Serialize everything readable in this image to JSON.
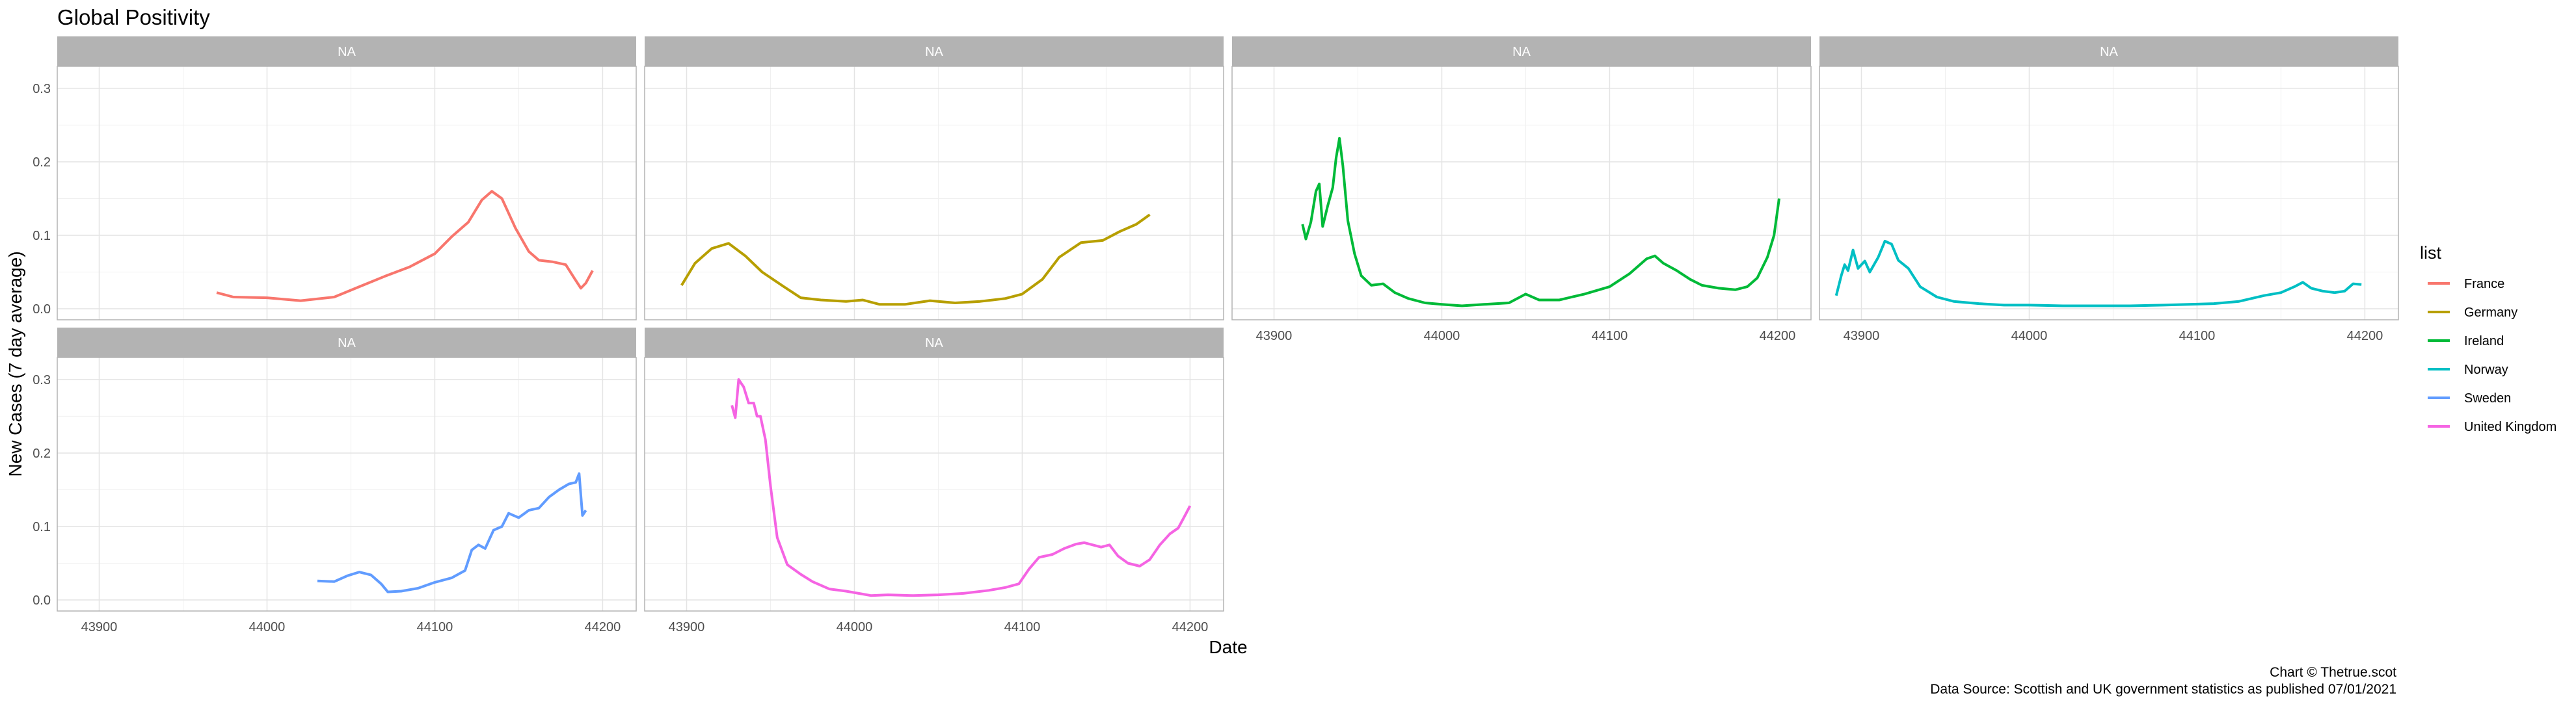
{
  "chart_data": {
    "type": "line",
    "title": "Global Positivity",
    "xlabel": "Date",
    "ylabel": "New Cases (7 day average)",
    "xlim": [
      43875,
      44220
    ],
    "ylim": [
      -0.015,
      0.33
    ],
    "x_ticks": [
      43900,
      44000,
      44100,
      44200
    ],
    "y_ticks": [
      0.0,
      0.1,
      0.2,
      0.3
    ],
    "y_tick_labels": [
      "0.0",
      "0.1",
      "0.2",
      "0.3"
    ],
    "facet_strip_label": "NA",
    "grid": true,
    "legend": {
      "title": "list",
      "position": "right"
    },
    "caption": [
      "Chart © Thetrue.scot",
      "Data Source: Scottish and UK government statistics as published 07/01/2021"
    ],
    "series": [
      {
        "name": "France",
        "color": "#F8766D",
        "points": [
          [
            43970,
            0.022
          ],
          [
            43980,
            0.016
          ],
          [
            44000,
            0.015
          ],
          [
            44020,
            0.011
          ],
          [
            44040,
            0.016
          ],
          [
            44055,
            0.03
          ],
          [
            44070,
            0.044
          ],
          [
            44085,
            0.057
          ],
          [
            44100,
            0.075
          ],
          [
            44110,
            0.098
          ],
          [
            44120,
            0.118
          ],
          [
            44128,
            0.148
          ],
          [
            44134,
            0.16
          ],
          [
            44140,
            0.15
          ],
          [
            44148,
            0.11
          ],
          [
            44156,
            0.078
          ],
          [
            44162,
            0.066
          ],
          [
            44170,
            0.064
          ],
          [
            44178,
            0.06
          ],
          [
            44183,
            0.042
          ],
          [
            44187,
            0.028
          ],
          [
            44190,
            0.035
          ],
          [
            44194,
            0.052
          ]
        ]
      },
      {
        "name": "Germany",
        "color": "#B79F00",
        "points": [
          [
            43897,
            0.032
          ],
          [
            43905,
            0.062
          ],
          [
            43915,
            0.082
          ],
          [
            43925,
            0.089
          ],
          [
            43935,
            0.072
          ],
          [
            43945,
            0.05
          ],
          [
            43958,
            0.03
          ],
          [
            43968,
            0.015
          ],
          [
            43980,
            0.012
          ],
          [
            43995,
            0.01
          ],
          [
            44005,
            0.012
          ],
          [
            44015,
            0.006
          ],
          [
            44030,
            0.006
          ],
          [
            44045,
            0.011
          ],
          [
            44060,
            0.008
          ],
          [
            44075,
            0.01
          ],
          [
            44090,
            0.014
          ],
          [
            44100,
            0.02
          ],
          [
            44112,
            0.04
          ],
          [
            44122,
            0.07
          ],
          [
            44135,
            0.09
          ],
          [
            44148,
            0.093
          ],
          [
            44158,
            0.105
          ],
          [
            44168,
            0.115
          ],
          [
            44176,
            0.128
          ]
        ]
      },
      {
        "name": "Ireland",
        "color": "#00BA38",
        "points": [
          [
            43917,
            0.115
          ],
          [
            43919,
            0.095
          ],
          [
            43922,
            0.118
          ],
          [
            43925,
            0.16
          ],
          [
            43927,
            0.17
          ],
          [
            43929,
            0.112
          ],
          [
            43932,
            0.14
          ],
          [
            43935,
            0.165
          ],
          [
            43937,
            0.205
          ],
          [
            43939,
            0.232
          ],
          [
            43941,
            0.195
          ],
          [
            43944,
            0.12
          ],
          [
            43948,
            0.075
          ],
          [
            43952,
            0.045
          ],
          [
            43958,
            0.032
          ],
          [
            43965,
            0.034
          ],
          [
            43972,
            0.022
          ],
          [
            43980,
            0.014
          ],
          [
            43990,
            0.008
          ],
          [
            44000,
            0.006
          ],
          [
            44012,
            0.004
          ],
          [
            44025,
            0.006
          ],
          [
            44040,
            0.008
          ],
          [
            44050,
            0.02
          ],
          [
            44058,
            0.012
          ],
          [
            44070,
            0.012
          ],
          [
            44085,
            0.02
          ],
          [
            44100,
            0.03
          ],
          [
            44112,
            0.048
          ],
          [
            44122,
            0.068
          ],
          [
            44127,
            0.072
          ],
          [
            44132,
            0.062
          ],
          [
            44140,
            0.052
          ],
          [
            44148,
            0.04
          ],
          [
            44155,
            0.032
          ],
          [
            44165,
            0.028
          ],
          [
            44175,
            0.026
          ],
          [
            44182,
            0.03
          ],
          [
            44188,
            0.042
          ],
          [
            44194,
            0.07
          ],
          [
            44198,
            0.1
          ],
          [
            44201,
            0.15
          ]
        ]
      },
      {
        "name": "Norway",
        "color": "#00BFC4",
        "points": [
          [
            43885,
            0.018
          ],
          [
            43888,
            0.045
          ],
          [
            43890,
            0.06
          ],
          [
            43892,
            0.052
          ],
          [
            43895,
            0.08
          ],
          [
            43898,
            0.055
          ],
          [
            43902,
            0.065
          ],
          [
            43905,
            0.05
          ],
          [
            43910,
            0.07
          ],
          [
            43914,
            0.092
          ],
          [
            43918,
            0.088
          ],
          [
            43922,
            0.066
          ],
          [
            43928,
            0.055
          ],
          [
            43935,
            0.03
          ],
          [
            43945,
            0.016
          ],
          [
            43955,
            0.01
          ],
          [
            43970,
            0.007
          ],
          [
            43985,
            0.005
          ],
          [
            44000,
            0.005
          ],
          [
            44020,
            0.004
          ],
          [
            44040,
            0.004
          ],
          [
            44060,
            0.004
          ],
          [
            44080,
            0.005
          ],
          [
            44095,
            0.006
          ],
          [
            44110,
            0.007
          ],
          [
            44125,
            0.01
          ],
          [
            44140,
            0.018
          ],
          [
            44150,
            0.022
          ],
          [
            44158,
            0.03
          ],
          [
            44163,
            0.036
          ],
          [
            44168,
            0.028
          ],
          [
            44175,
            0.024
          ],
          [
            44182,
            0.022
          ],
          [
            44188,
            0.024
          ],
          [
            44193,
            0.034
          ],
          [
            44198,
            0.033
          ]
        ]
      },
      {
        "name": "Sweden",
        "color": "#619CFF",
        "points": [
          [
            44030,
            0.026
          ],
          [
            44040,
            0.025
          ],
          [
            44048,
            0.033
          ],
          [
            44055,
            0.038
          ],
          [
            44062,
            0.034
          ],
          [
            44068,
            0.022
          ],
          [
            44072,
            0.011
          ],
          [
            44080,
            0.012
          ],
          [
            44090,
            0.016
          ],
          [
            44100,
            0.024
          ],
          [
            44110,
            0.03
          ],
          [
            44118,
            0.04
          ],
          [
            44122,
            0.068
          ],
          [
            44126,
            0.075
          ],
          [
            44130,
            0.07
          ],
          [
            44135,
            0.095
          ],
          [
            44140,
            0.1
          ],
          [
            44144,
            0.118
          ],
          [
            44150,
            0.112
          ],
          [
            44156,
            0.122
          ],
          [
            44162,
            0.125
          ],
          [
            44168,
            0.14
          ],
          [
            44174,
            0.15
          ],
          [
            44180,
            0.158
          ],
          [
            44184,
            0.16
          ],
          [
            44186,
            0.172
          ],
          [
            44188,
            0.115
          ],
          [
            44190,
            0.122
          ]
        ]
      },
      {
        "name": "United Kingdom",
        "color": "#F564E3",
        "points": [
          [
            43927,
            0.265
          ],
          [
            43929,
            0.248
          ],
          [
            43931,
            0.3
          ],
          [
            43934,
            0.29
          ],
          [
            43937,
            0.268
          ],
          [
            43940,
            0.268
          ],
          [
            43942,
            0.25
          ],
          [
            43944,
            0.25
          ],
          [
            43947,
            0.218
          ],
          [
            43950,
            0.155
          ],
          [
            43954,
            0.085
          ],
          [
            43960,
            0.048
          ],
          [
            43968,
            0.035
          ],
          [
            43975,
            0.025
          ],
          [
            43985,
            0.015
          ],
          [
            43995,
            0.012
          ],
          [
            44005,
            0.008
          ],
          [
            44010,
            0.006
          ],
          [
            44020,
            0.007
          ],
          [
            44035,
            0.006
          ],
          [
            44050,
            0.007
          ],
          [
            44065,
            0.009
          ],
          [
            44080,
            0.013
          ],
          [
            44090,
            0.017
          ],
          [
            44098,
            0.022
          ],
          [
            44104,
            0.042
          ],
          [
            44110,
            0.058
          ],
          [
            44118,
            0.062
          ],
          [
            44125,
            0.07
          ],
          [
            44132,
            0.076
          ],
          [
            44137,
            0.078
          ],
          [
            44142,
            0.075
          ],
          [
            44147,
            0.072
          ],
          [
            44152,
            0.075
          ],
          [
            44157,
            0.06
          ],
          [
            44163,
            0.05
          ],
          [
            44170,
            0.046
          ],
          [
            44176,
            0.055
          ],
          [
            44182,
            0.075
          ],
          [
            44188,
            0.09
          ],
          [
            44193,
            0.098
          ],
          [
            44197,
            0.115
          ],
          [
            44200,
            0.128
          ]
        ]
      }
    ]
  }
}
